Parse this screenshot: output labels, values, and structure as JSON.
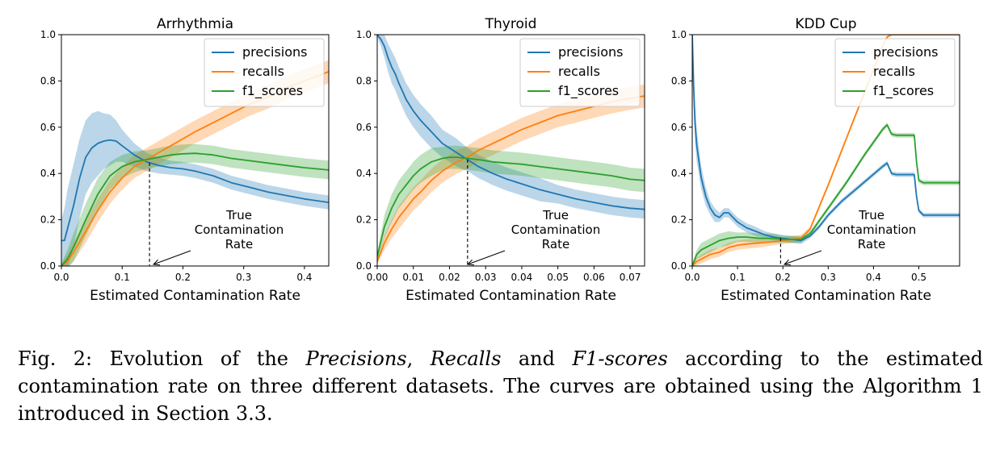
{
  "chart_data": [
    {
      "type": "line",
      "title": "Arrhythmia",
      "xlabel": "Estimated Contamination Rate",
      "ylabel": "",
      "xlim": [
        0,
        0.44
      ],
      "ylim": [
        0,
        1.0
      ],
      "xticks": [
        "0.0",
        "0.1",
        "0.2",
        "0.3",
        "0.4"
      ],
      "yticks": [
        "0.0",
        "0.2",
        "0.4",
        "0.6",
        "0.8",
        "1.0"
      ],
      "legend_position": "top-right",
      "true_rate": 0.145,
      "annotation": [
        "True",
        "Contamination",
        "Rate"
      ],
      "series": [
        {
          "name": "precisions",
          "color": "#1f77b4",
          "x": [
            0,
            0.005,
            0.01,
            0.02,
            0.03,
            0.04,
            0.05,
            0.06,
            0.07,
            0.08,
            0.09,
            0.1,
            0.12,
            0.14,
            0.16,
            0.18,
            0.2,
            0.22,
            0.25,
            0.28,
            0.31,
            0.34,
            0.37,
            0.4,
            0.44
          ],
          "values": [
            0.11,
            0.11,
            0.16,
            0.26,
            0.38,
            0.47,
            0.51,
            0.53,
            0.54,
            0.545,
            0.54,
            0.52,
            0.48,
            0.45,
            0.435,
            0.425,
            0.42,
            0.41,
            0.39,
            0.36,
            0.34,
            0.32,
            0.305,
            0.29,
            0.275
          ],
          "band": [
            0.09,
            0.14,
            0.17,
            0.18,
            0.17,
            0.16,
            0.15,
            0.14,
            0.12,
            0.11,
            0.09,
            0.07,
            0.05,
            0.04,
            0.035,
            0.03,
            0.03,
            0.03,
            0.03,
            0.03,
            0.03,
            0.03,
            0.03,
            0.03,
            0.03
          ]
        },
        {
          "name": "recalls",
          "color": "#ff7f0e",
          "x": [
            0,
            0.01,
            0.02,
            0.04,
            0.06,
            0.08,
            0.1,
            0.12,
            0.14,
            0.16,
            0.18,
            0.2,
            0.22,
            0.25,
            0.28,
            0.31,
            0.34,
            0.37,
            0.4,
            0.44
          ],
          "values": [
            0,
            0.02,
            0.06,
            0.15,
            0.24,
            0.32,
            0.38,
            0.43,
            0.46,
            0.49,
            0.52,
            0.55,
            0.58,
            0.62,
            0.66,
            0.7,
            0.73,
            0.77,
            0.8,
            0.84
          ],
          "band": [
            0.01,
            0.03,
            0.04,
            0.05,
            0.05,
            0.05,
            0.05,
            0.05,
            0.05,
            0.05,
            0.05,
            0.05,
            0.05,
            0.05,
            0.05,
            0.05,
            0.05,
            0.05,
            0.05,
            0.05
          ]
        },
        {
          "name": "f1_scores",
          "color": "#2ca02c",
          "x": [
            0,
            0.01,
            0.02,
            0.04,
            0.06,
            0.08,
            0.1,
            0.12,
            0.14,
            0.16,
            0.18,
            0.2,
            0.22,
            0.25,
            0.28,
            0.31,
            0.34,
            0.37,
            0.4,
            0.44
          ],
          "values": [
            0,
            0.03,
            0.08,
            0.2,
            0.31,
            0.39,
            0.43,
            0.45,
            0.46,
            0.47,
            0.48,
            0.485,
            0.487,
            0.48,
            0.465,
            0.455,
            0.445,
            0.435,
            0.425,
            0.415
          ],
          "band": [
            0.01,
            0.04,
            0.06,
            0.07,
            0.07,
            0.06,
            0.05,
            0.045,
            0.04,
            0.04,
            0.04,
            0.04,
            0.04,
            0.04,
            0.04,
            0.04,
            0.04,
            0.04,
            0.04,
            0.04
          ]
        }
      ]
    },
    {
      "type": "line",
      "title": "Thyroid",
      "xlabel": "Estimated Contamination Rate",
      "ylabel": "",
      "xlim": [
        0,
        0.074
      ],
      "ylim": [
        0,
        1.0
      ],
      "xticks": [
        "0.00",
        "0.01",
        "0.02",
        "0.03",
        "0.04",
        "0.05",
        "0.06",
        "0.07"
      ],
      "yticks": [
        "0.0",
        "0.2",
        "0.4",
        "0.6",
        "0.8",
        "1.0"
      ],
      "legend_position": "top-right",
      "true_rate": 0.025,
      "annotation": [
        "True",
        "Contamination",
        "Rate"
      ],
      "series": [
        {
          "name": "precisions",
          "color": "#1f77b4",
          "x": [
            0,
            0.001,
            0.002,
            0.003,
            0.004,
            0.005,
            0.006,
            0.008,
            0.01,
            0.012,
            0.015,
            0.018,
            0.02,
            0.022,
            0.025,
            0.028,
            0.032,
            0.036,
            0.04,
            0.045,
            0.05,
            0.055,
            0.06,
            0.065,
            0.07,
            0.074
          ],
          "values": [
            1.0,
            0.98,
            0.95,
            0.9,
            0.86,
            0.83,
            0.79,
            0.72,
            0.67,
            0.63,
            0.58,
            0.53,
            0.51,
            0.49,
            0.46,
            0.43,
            0.4,
            0.375,
            0.355,
            0.33,
            0.31,
            0.29,
            0.275,
            0.26,
            0.25,
            0.245
          ],
          "band": [
            0.01,
            0.03,
            0.05,
            0.06,
            0.07,
            0.07,
            0.07,
            0.07,
            0.07,
            0.07,
            0.07,
            0.06,
            0.06,
            0.06,
            0.05,
            0.05,
            0.05,
            0.05,
            0.05,
            0.05,
            0.04,
            0.04,
            0.04,
            0.04,
            0.04,
            0.04
          ]
        },
        {
          "name": "recalls",
          "color": "#ff7f0e",
          "x": [
            0,
            0.002,
            0.004,
            0.006,
            0.008,
            0.01,
            0.012,
            0.015,
            0.018,
            0.02,
            0.022,
            0.025,
            0.028,
            0.032,
            0.036,
            0.04,
            0.045,
            0.05,
            0.055,
            0.06,
            0.065,
            0.07,
            0.074
          ],
          "values": [
            0.02,
            0.1,
            0.16,
            0.21,
            0.25,
            0.29,
            0.32,
            0.37,
            0.41,
            0.43,
            0.45,
            0.47,
            0.5,
            0.53,
            0.56,
            0.59,
            0.62,
            0.65,
            0.67,
            0.69,
            0.71,
            0.725,
            0.735
          ],
          "band": [
            0.01,
            0.03,
            0.04,
            0.05,
            0.05,
            0.05,
            0.05,
            0.05,
            0.05,
            0.05,
            0.05,
            0.05,
            0.05,
            0.05,
            0.05,
            0.05,
            0.05,
            0.05,
            0.05,
            0.05,
            0.05,
            0.05,
            0.05
          ]
        },
        {
          "name": "f1_scores",
          "color": "#2ca02c",
          "x": [
            0,
            0.002,
            0.004,
            0.006,
            0.008,
            0.01,
            0.012,
            0.015,
            0.018,
            0.02,
            0.022,
            0.025,
            0.028,
            0.032,
            0.036,
            0.04,
            0.045,
            0.05,
            0.055,
            0.06,
            0.065,
            0.07,
            0.074
          ],
          "values": [
            0.04,
            0.17,
            0.25,
            0.31,
            0.35,
            0.39,
            0.42,
            0.45,
            0.465,
            0.47,
            0.47,
            0.465,
            0.46,
            0.45,
            0.445,
            0.44,
            0.43,
            0.42,
            0.41,
            0.4,
            0.39,
            0.375,
            0.37
          ],
          "band": [
            0.02,
            0.05,
            0.06,
            0.06,
            0.06,
            0.06,
            0.06,
            0.06,
            0.05,
            0.05,
            0.05,
            0.05,
            0.05,
            0.05,
            0.05,
            0.05,
            0.05,
            0.05,
            0.05,
            0.05,
            0.05,
            0.05,
            0.05
          ]
        }
      ]
    },
    {
      "type": "line",
      "title": "KDD Cup",
      "xlabel": "Estimated Contamination Rate",
      "ylabel": "",
      "xlim": [
        0,
        0.59
      ],
      "ylim": [
        0,
        1.0
      ],
      "xticks": [
        "0.0",
        "0.1",
        "0.2",
        "0.3",
        "0.4",
        "0.5"
      ],
      "yticks": [
        "0.0",
        "0.2",
        "0.4",
        "0.6",
        "0.8",
        "1.0"
      ],
      "legend_position": "top-right",
      "true_rate": 0.195,
      "annotation": [
        "True",
        "Contamination",
        "Rate"
      ],
      "series": [
        {
          "name": "precisions",
          "color": "#1f77b4",
          "x": [
            0,
            0.003,
            0.006,
            0.01,
            0.02,
            0.03,
            0.04,
            0.05,
            0.06,
            0.07,
            0.08,
            0.09,
            0.1,
            0.12,
            0.14,
            0.16,
            0.18,
            0.2,
            0.22,
            0.24,
            0.26,
            0.28,
            0.3,
            0.33,
            0.36,
            0.39,
            0.42,
            0.43,
            0.44,
            0.45,
            0.49,
            0.495,
            0.5,
            0.51,
            0.59
          ],
          "values": [
            1.0,
            0.78,
            0.62,
            0.52,
            0.38,
            0.3,
            0.25,
            0.22,
            0.21,
            0.23,
            0.23,
            0.21,
            0.19,
            0.165,
            0.15,
            0.135,
            0.125,
            0.12,
            0.115,
            0.11,
            0.13,
            0.17,
            0.22,
            0.28,
            0.33,
            0.38,
            0.43,
            0.445,
            0.4,
            0.395,
            0.395,
            0.3,
            0.24,
            0.22,
            0.22
          ],
          "band": [
            0.02,
            0.08,
            0.08,
            0.07,
            0.05,
            0.04,
            0.03,
            0.03,
            0.02,
            0.02,
            0.02,
            0.02,
            0.02,
            0.02,
            0.02,
            0.015,
            0.015,
            0.015,
            0.015,
            0.015,
            0.01,
            0.01,
            0.01,
            0.01,
            0.01,
            0.01,
            0.01,
            0.01,
            0.01,
            0.01,
            0.01,
            0.01,
            0.01,
            0.01,
            0.01
          ]
        },
        {
          "name": "recalls",
          "color": "#ff7f0e",
          "x": [
            0,
            0.01,
            0.02,
            0.04,
            0.06,
            0.08,
            0.1,
            0.12,
            0.15,
            0.18,
            0.2,
            0.22,
            0.24,
            0.26,
            0.3,
            0.34,
            0.38,
            0.42,
            0.43,
            0.44,
            0.59
          ],
          "values": [
            0,
            0.02,
            0.03,
            0.05,
            0.06,
            0.08,
            0.09,
            0.095,
            0.1,
            0.105,
            0.11,
            0.115,
            0.12,
            0.16,
            0.35,
            0.55,
            0.75,
            0.95,
            0.99,
            1.0,
            1.0
          ],
          "band": [
            0.01,
            0.015,
            0.02,
            0.02,
            0.02,
            0.02,
            0.02,
            0.02,
            0.02,
            0.015,
            0.015,
            0.015,
            0.015,
            0.01,
            0.01,
            0.01,
            0.01,
            0.005,
            0.005,
            0.005,
            0.005
          ]
        },
        {
          "name": "f1_scores",
          "color": "#2ca02c",
          "x": [
            0,
            0.01,
            0.02,
            0.04,
            0.06,
            0.08,
            0.1,
            0.12,
            0.15,
            0.18,
            0.2,
            0.22,
            0.24,
            0.26,
            0.3,
            0.34,
            0.38,
            0.42,
            0.43,
            0.44,
            0.45,
            0.49,
            0.495,
            0.5,
            0.51,
            0.59
          ],
          "values": [
            0,
            0.05,
            0.07,
            0.09,
            0.11,
            0.12,
            0.125,
            0.125,
            0.12,
            0.12,
            0.115,
            0.115,
            0.115,
            0.14,
            0.25,
            0.36,
            0.48,
            0.59,
            0.61,
            0.57,
            0.565,
            0.565,
            0.45,
            0.37,
            0.36,
            0.36
          ],
          "band": [
            0.01,
            0.02,
            0.03,
            0.03,
            0.03,
            0.03,
            0.02,
            0.02,
            0.02,
            0.02,
            0.015,
            0.015,
            0.015,
            0.01,
            0.01,
            0.01,
            0.01,
            0.01,
            0.01,
            0.01,
            0.01,
            0.01,
            0.01,
            0.01,
            0.01,
            0.01
          ]
        }
      ]
    }
  ],
  "caption": {
    "prefix": "Fig. 2: Evolution of the ",
    "term1": "Precisions",
    "sep1": ", ",
    "term2": "Recalls",
    "sep2": " and ",
    "term3": "F1-scores",
    "rest": " according to the estimated contamination rate on three different datasets. The curves are obtained using the Algorithm 1 introduced in Section 3.3."
  }
}
